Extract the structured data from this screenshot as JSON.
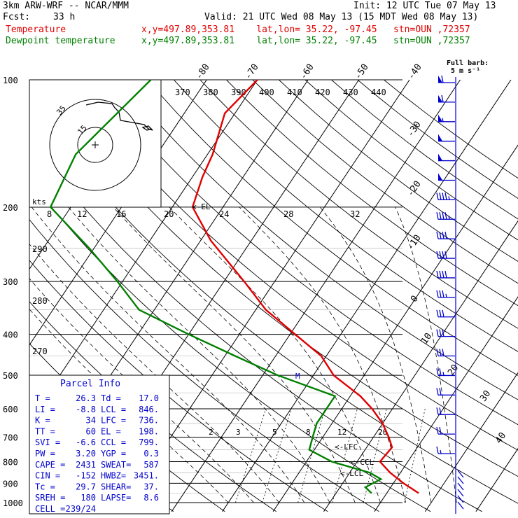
{
  "header": {
    "title": "3km ARW-WRF -- NCAR/MMM",
    "init": "Init: 12 UTC Tue 07 May 13",
    "fcst_label": "Fcst:",
    "fcst_value": "33 h",
    "valid": "Valid: 21 UTC Wed 08 May 13 (15 MDT Wed 08 May 13)",
    "temp_label": "Temperature",
    "dew_label": "Dewpoint temperature",
    "temp_loc": "x,y=497.89,353.81    lat,lon= 35.22, -97.45   stn=OUN ,72357",
    "dew_loc": "x,y=497.89,353.81    lat,lon= 35.22, -97.45   stn=OUN ,72357"
  },
  "wind_legend": {
    "line1": "Full barb:",
    "line2": "5 m s⁻¹"
  },
  "hodograph": {
    "units_label": "kts",
    "ring_labels": [
      "35",
      "15"
    ]
  },
  "parcel_info": {
    "title": "Parcel Info",
    "rows": [
      {
        "k1": "T   =",
        "v1": "26.3",
        "k2": "Td =",
        "v2": "17.0"
      },
      {
        "k1": "LI  =",
        "v1": "-8.8",
        "k2": "LCL =",
        "v2": "846."
      },
      {
        "k1": "K   =",
        "v1": "34",
        "k2": "LFC =",
        "v2": "736."
      },
      {
        "k1": "TT  =",
        "v1": "60",
        "k2": "EL  =",
        "v2": "198."
      },
      {
        "k1": "SVI =",
        "v1": "-6.6",
        "k2": "CCL =",
        "v2": "799."
      },
      {
        "k1": "PW  =",
        "v1": "3.20",
        "k2": "YGP =",
        "v2": "0.3"
      },
      {
        "k1": "CAPE =",
        "v1": "2431",
        "k2": "SWEAT=",
        "v2": "587"
      },
      {
        "k1": "CIN  =",
        "v1": "-152",
        "k2": "HWBZ=",
        "v2": "3451."
      },
      {
        "k1": "Tc   =",
        "v1": "29.7",
        "k2": "SHEAR=",
        "v2": "37."
      },
      {
        "k1": "SREH =",
        "v1": "180",
        "k2": "LAPSE=",
        "v2": "8.6"
      },
      {
        "k1": "CELL =",
        "v1": "239/24",
        "k2": "",
        "v2": ""
      }
    ]
  },
  "level_markers": {
    "el": "<-EL",
    "lfc": "<-LFC",
    "ccl": "<-CCL",
    "lcl": "<-LCL",
    "m": "M"
  },
  "colors": {
    "temperature": "#e00000",
    "dewpoint": "#008000",
    "parcel_info": "#0000cc",
    "wind_barbs": "#0000cc"
  },
  "chart_data": {
    "type": "line",
    "title": "",
    "xlabel": "",
    "ylabel": "",
    "pressure_levels": [
      100,
      200,
      300,
      400,
      500,
      600,
      700,
      800,
      900,
      1000
    ],
    "isotherm_labels": [
      "-80",
      "-70",
      "-60",
      "-50",
      "-40",
      "-30",
      "-20",
      "-10",
      "0",
      "10",
      "20",
      "30",
      "40"
    ],
    "theta_labels_top": [
      "370",
      "380",
      "390",
      "400",
      "410",
      "420",
      "430",
      "440"
    ],
    "theta_labels_left": [
      "290",
      "280",
      "270"
    ],
    "mixing_ratio_labels": [
      "2",
      "3",
      "5",
      "8",
      "12",
      "20"
    ],
    "hodo_speed_labels": [
      "8",
      "12",
      "16",
      "20",
      "24",
      "28",
      "32"
    ],
    "series": [
      {
        "name": "Temperature",
        "points": [
          [
            100,
            -60
          ],
          [
            120,
            -62
          ],
          [
            150,
            -59
          ],
          [
            170,
            -58
          ],
          [
            200,
            -56
          ],
          [
            240,
            -48
          ],
          [
            300,
            -36
          ],
          [
            350,
            -28
          ],
          [
            400,
            -19
          ],
          [
            450,
            -11
          ],
          [
            500,
            -6
          ],
          [
            560,
            2
          ],
          [
            600,
            6
          ],
          [
            650,
            10
          ],
          [
            700,
            13
          ],
          [
            740,
            15
          ],
          [
            800,
            14.5
          ],
          [
            850,
            18
          ],
          [
            900,
            22
          ],
          [
            950,
            26.3
          ]
        ]
      },
      {
        "name": "Dewpoint temperature",
        "points": [
          [
            100,
            -81
          ],
          [
            150,
            -86
          ],
          [
            200,
            -84
          ],
          [
            250,
            -71
          ],
          [
            300,
            -61
          ],
          [
            350,
            -53
          ],
          [
            400,
            -40
          ],
          [
            450,
            -28
          ],
          [
            500,
            -17
          ],
          [
            560,
            -3
          ],
          [
            600,
            -3
          ],
          [
            650,
            -3
          ],
          [
            700,
            -2
          ],
          [
            750,
            -1
          ],
          [
            800,
            5
          ],
          [
            850,
            14
          ],
          [
            880,
            17
          ],
          [
            920,
            15
          ],
          [
            950,
            17
          ]
        ]
      }
    ],
    "wind_barbs_speed_ms": [
      30,
      30,
      28,
      27,
      26,
      25,
      24,
      23,
      22,
      21,
      20,
      18,
      17,
      16,
      15,
      14,
      12,
      11,
      10,
      8
    ],
    "grid": true,
    "legend": "top-left"
  }
}
